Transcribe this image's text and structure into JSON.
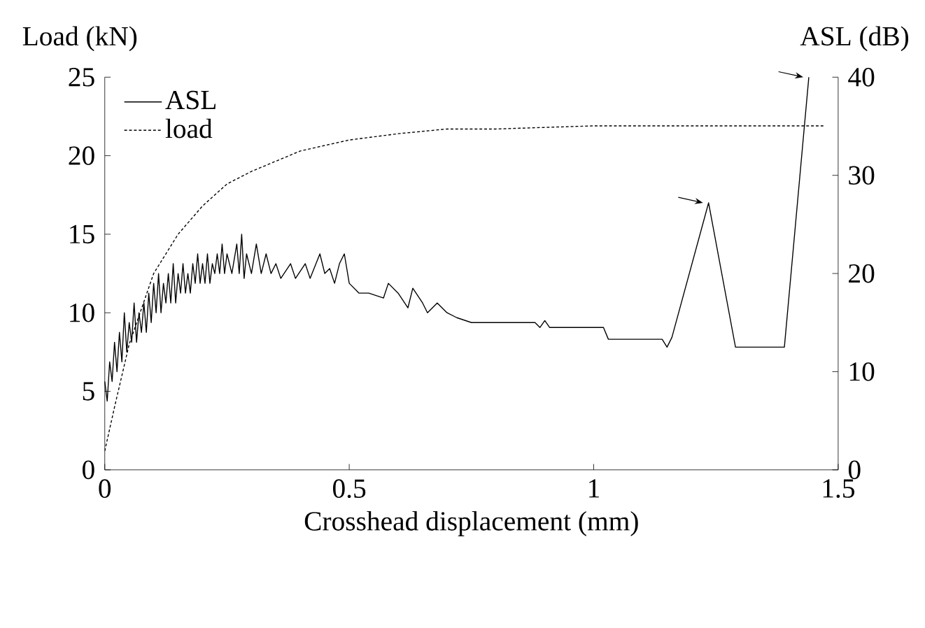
{
  "chart_data": {
    "type": "line",
    "xlabel": "Crosshead displacement (mm)",
    "ylabel": "Load (kN)",
    "y2label": "ASL (dB)",
    "xlim": [
      0,
      1.5
    ],
    "xticks": [
      0,
      0.5,
      1,
      1.5
    ],
    "ylim": [
      0,
      25
    ],
    "yticks": [
      0,
      5,
      10,
      15,
      20,
      25
    ],
    "y2lim": [
      0,
      40
    ],
    "y2ticks": [
      0,
      10,
      20,
      30,
      40
    ],
    "legend": "top left",
    "grid": false,
    "marker": "none",
    "series": [
      {
        "name": "ASL",
        "color": "#000000",
        "axis": "y2",
        "line_style": "solid",
        "x": [
          0,
          0.005,
          0.01,
          0.015,
          0.02,
          0.025,
          0.03,
          0.035,
          0.04,
          0.045,
          0.05,
          0.055,
          0.06,
          0.065,
          0.07,
          0.075,
          0.08,
          0.085,
          0.09,
          0.095,
          0.1,
          0.105,
          0.11,
          0.115,
          0.12,
          0.125,
          0.13,
          0.135,
          0.14,
          0.145,
          0.15,
          0.155,
          0.16,
          0.165,
          0.17,
          0.175,
          0.18,
          0.185,
          0.19,
          0.195,
          0.2,
          0.205,
          0.21,
          0.215,
          0.22,
          0.225,
          0.23,
          0.235,
          0.24,
          0.245,
          0.25,
          0.26,
          0.27,
          0.275,
          0.28,
          0.285,
          0.29,
          0.3,
          0.31,
          0.32,
          0.33,
          0.34,
          0.35,
          0.36,
          0.38,
          0.39,
          0.41,
          0.42,
          0.44,
          0.45,
          0.46,
          0.47,
          0.48,
          0.49,
          0.5,
          0.52,
          0.54,
          0.57,
          0.58,
          0.6,
          0.62,
          0.63,
          0.65,
          0.66,
          0.68,
          0.7,
          0.72,
          0.75,
          0.88,
          0.89,
          0.9,
          0.91,
          0.92,
          0.96,
          1.02,
          1.03,
          1.14,
          1.15,
          1.16,
          1.235,
          1.29,
          1.39,
          1.44
        ],
        "values": [
          9,
          7,
          11,
          9,
          13,
          10,
          14,
          11,
          16,
          12,
          15,
          13,
          17,
          13,
          16,
          14,
          17,
          14,
          18,
          15,
          19,
          16,
          20,
          16,
          19,
          17,
          20,
          17,
          21,
          17,
          20,
          18,
          21,
          18,
          20,
          18,
          21,
          19,
          22,
          19,
          21,
          19,
          22,
          19,
          21,
          20,
          22,
          20,
          23,
          20,
          22,
          20,
          23,
          20,
          24,
          19.5,
          22,
          20,
          23,
          20,
          22,
          20,
          21,
          19.5,
          21,
          19.5,
          21,
          19.5,
          22,
          20,
          20.5,
          19,
          21,
          22,
          19,
          18,
          18,
          17.5,
          19,
          18,
          16.5,
          18.5,
          17,
          16,
          17,
          16,
          15.5,
          15,
          15,
          14.5,
          15.2,
          14.5,
          14.5,
          14.5,
          14.5,
          13.3,
          13.3,
          12.5,
          13.5,
          27.2,
          12.5,
          12.5,
          40
        ]
      },
      {
        "name": "load",
        "color": "#000000",
        "line_style": "dashed",
        "x": [
          0,
          0.02,
          0.05,
          0.1,
          0.15,
          0.2,
          0.25,
          0.3,
          0.4,
          0.5,
          0.6,
          0.7,
          0.8,
          0.9,
          1.0,
          1.2,
          1.4,
          1.47
        ],
        "values": [
          1.2,
          4,
          8,
          12.5,
          15,
          16.8,
          18.2,
          19,
          20.3,
          21,
          21.4,
          21.7,
          21.7,
          21.8,
          21.9,
          21.9,
          21.9,
          21.9
        ]
      }
    ]
  }
}
